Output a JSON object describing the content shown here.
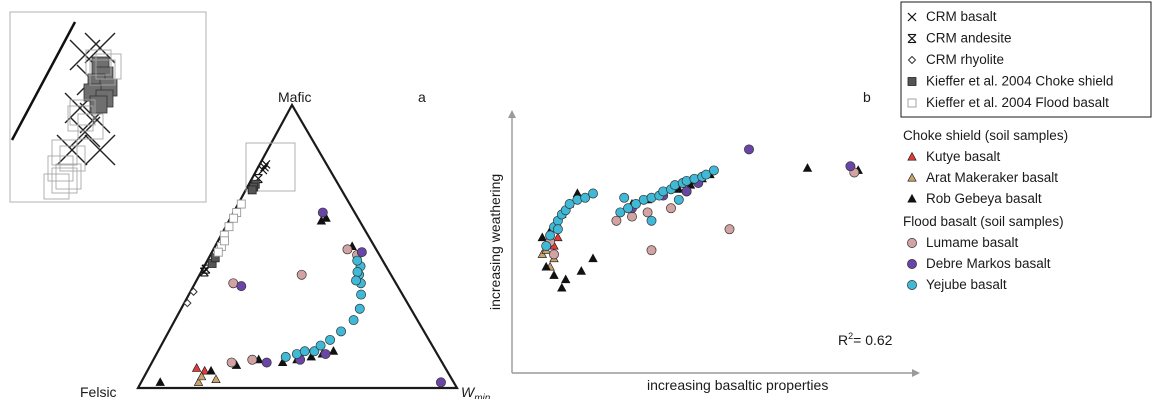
{
  "colors": {
    "axis": "#1a1a1a",
    "arrow": "#9a9a9a",
    "inset_border": "#b0b0b0",
    "kutye": "#e03a3a",
    "arat": "#c9a26e",
    "rob": "#111111",
    "lumame_fill": "#d3a3a3",
    "debre_fill": "#6a45a8",
    "yejube_fill": "#3fb9d6",
    "kieffer_choke": "#555555",
    "kieffer_flood": "#ffffff"
  },
  "chart_data": [
    {
      "panel": "a",
      "type": "scatter",
      "subtype": "ternary",
      "vertices": {
        "top": "Mafic",
        "left": "Felsic",
        "right": "W",
        "right_subscript": "min"
      },
      "note": "values are barycentric fractions (mafic, felsic, wmin)",
      "series": [
        {
          "name": "CRM basalt",
          "marker": "x",
          "points": [
            [
              0.78,
              0.2,
              0.02
            ],
            [
              0.77,
              0.21,
              0.02
            ],
            [
              0.79,
              0.19,
              0.02
            ]
          ]
        },
        {
          "name": "CRM andesite",
          "marker": "x-bar",
          "points": [
            [
              0.41,
              0.58,
              0.01
            ],
            [
              0.42,
              0.57,
              0.01
            ],
            [
              0.74,
              0.24,
              0.02
            ]
          ]
        },
        {
          "name": "CRM rhyolite",
          "marker": "diamond",
          "points": [
            [
              0.3,
              0.69,
              0.01
            ],
            [
              0.34,
              0.65,
              0.01
            ]
          ]
        },
        {
          "name": "Kieffer et al. 2004 Choke shield",
          "marker": "square-dark",
          "points": [
            [
              0.72,
              0.26,
              0.02
            ],
            [
              0.71,
              0.27,
              0.02
            ],
            [
              0.7,
              0.28,
              0.02
            ],
            [
              0.44,
              0.54,
              0.02
            ],
            [
              0.46,
              0.52,
              0.02
            ]
          ]
        },
        {
          "name": "Kieffer et al. 2004 Flood basalt",
          "marker": "square-open",
          "points": [
            [
              0.65,
              0.34,
              0.01
            ],
            [
              0.62,
              0.37,
              0.01
            ],
            [
              0.6,
              0.39,
              0.01
            ],
            [
              0.57,
              0.42,
              0.01
            ],
            [
              0.54,
              0.45,
              0.01
            ],
            [
              0.5,
              0.48,
              0.02
            ],
            [
              0.48,
              0.5,
              0.02
            ],
            [
              0.52,
              0.46,
              0.02
            ]
          ]
        },
        {
          "name": "Kutye basalt",
          "marker": "triangle",
          "points": [
            [
              0.07,
              0.78,
              0.15
            ],
            [
              0.06,
              0.76,
              0.18
            ]
          ]
        },
        {
          "name": "Arat Makeraker basalt",
          "marker": "triangle",
          "points": [
            [
              0.02,
              0.8,
              0.18
            ],
            [
              0.04,
              0.78,
              0.18
            ],
            [
              0.03,
              0.74,
              0.23
            ]
          ]
        },
        {
          "name": "Rob Gebeya basalt",
          "marker": "triangle",
          "points": [
            [
              0.02,
              0.92,
              0.06
            ],
            [
              0.06,
              0.74,
              0.2
            ],
            [
              0.08,
              0.65,
              0.27
            ],
            [
              0.1,
              0.57,
              0.33
            ],
            [
              0.09,
              0.5,
              0.41
            ],
            [
              0.1,
              0.45,
              0.45
            ],
            [
              0.11,
              0.4,
              0.49
            ],
            [
              0.12,
              0.36,
              0.52
            ],
            [
              0.13,
              0.32,
              0.55
            ],
            [
              0.59,
              0.12,
              0.29
            ],
            [
              0.6,
              0.1,
              0.3
            ],
            [
              0.5,
              0.07,
              0.43
            ]
          ]
        },
        {
          "name": "Lumame basalt",
          "marker": "circle",
          "points": [
            [
              0.09,
              0.66,
              0.25
            ],
            [
              0.1,
              0.59,
              0.31
            ],
            [
              0.4,
              0.28,
              0.32
            ],
            [
              0.49,
              0.09,
              0.42
            ],
            [
              0.47,
              0.07,
              0.46
            ],
            [
              0.37,
              0.51,
              0.12
            ]
          ]
        },
        {
          "name": "Debre Markos basalt",
          "marker": "circle",
          "points": [
            [
              0.36,
              0.49,
              0.15
            ],
            [
              0.62,
              0.1,
              0.28
            ],
            [
              0.48,
              0.05,
              0.47
            ],
            [
              0.09,
              0.55,
              0.36
            ],
            [
              0.1,
              0.44,
              0.46
            ],
            [
              0.12,
              0.35,
              0.53
            ],
            [
              0.02,
              0.04,
              0.94
            ]
          ]
        },
        {
          "name": "Yejube basalt",
          "marker": "circle",
          "points": [
            [
              0.11,
              0.48,
              0.41
            ],
            [
              0.12,
              0.44,
              0.44
            ],
            [
              0.13,
              0.41,
              0.46
            ],
            [
              0.13,
              0.38,
              0.49
            ],
            [
              0.15,
              0.35,
              0.5
            ],
            [
              0.17,
              0.31,
              0.52
            ],
            [
              0.2,
              0.26,
              0.54
            ],
            [
              0.24,
              0.2,
              0.56
            ],
            [
              0.28,
              0.16,
              0.56
            ],
            [
              0.33,
              0.13,
              0.54
            ],
            [
              0.37,
              0.11,
              0.52
            ],
            [
              0.4,
              0.1,
              0.5
            ],
            [
              0.43,
              0.08,
              0.49
            ],
            [
              0.45,
              0.08,
              0.47
            ],
            [
              0.41,
              0.1,
              0.49
            ],
            [
              0.38,
              0.12,
              0.5
            ]
          ]
        }
      ]
    },
    {
      "panel": "b",
      "type": "scatter",
      "xlabel": "increasing basaltic properties",
      "ylabel": "increasing weathering",
      "annotation": "R² = 0.62",
      "xlim": [
        0,
        100
      ],
      "ylim": [
        0,
        100
      ],
      "series": [
        {
          "name": "Kutye basalt",
          "points": [
            [
              10,
              40
            ],
            [
              11,
              44
            ]
          ]
        },
        {
          "name": "Arat Makeraker basalt",
          "points": [
            [
              7,
              36
            ],
            [
              8,
              38
            ],
            [
              9,
              30
            ],
            [
              10,
              34
            ]
          ]
        },
        {
          "name": "Rob Gebeya basalt",
          "points": [
            [
              7,
              44
            ],
            [
              9,
              47
            ],
            [
              11,
              50
            ],
            [
              12,
              55
            ],
            [
              14,
              60
            ],
            [
              16,
              65
            ],
            [
              8,
              30
            ],
            [
              10,
              26
            ],
            [
              12,
              20
            ],
            [
              13,
              24
            ],
            [
              17,
              28
            ],
            [
              20,
              34
            ],
            [
              30,
              60
            ],
            [
              34,
              62
            ],
            [
              38,
              65
            ],
            [
              42,
              67
            ],
            [
              45,
              69
            ],
            [
              48,
              72
            ],
            [
              50,
              74
            ],
            [
              75,
              77
            ],
            [
              88,
              76
            ],
            [
              45,
              71
            ]
          ]
        },
        {
          "name": "Lumame basalt",
          "points": [
            [
              9,
              42
            ],
            [
              10,
              36
            ],
            [
              26,
              52
            ],
            [
              30,
              54
            ],
            [
              34,
              56
            ],
            [
              40,
              58
            ],
            [
              44,
              66
            ],
            [
              55,
              48
            ],
            [
              35,
              38
            ],
            [
              87,
              75
            ]
          ]
        },
        {
          "name": "Debre Markos basalt",
          "points": [
            [
              30,
              58
            ],
            [
              38,
              64
            ],
            [
              44,
              66
            ],
            [
              47,
              70
            ],
            [
              60,
              86
            ],
            [
              86,
              78
            ]
          ]
        },
        {
          "name": "Yejube basalt",
          "points": [
            [
              8,
              40
            ],
            [
              9,
              45
            ],
            [
              10,
              49
            ],
            [
              11,
              52
            ],
            [
              12,
              55
            ],
            [
              13,
              57
            ],
            [
              14,
              60
            ],
            [
              16,
              62
            ],
            [
              18,
              63
            ],
            [
              20,
              65
            ],
            [
              27,
              56
            ],
            [
              29,
              58
            ],
            [
              31,
              60
            ],
            [
              33,
              62
            ],
            [
              35,
              63
            ],
            [
              37,
              64
            ],
            [
              38,
              66
            ],
            [
              40,
              67
            ],
            [
              41,
              69
            ],
            [
              43,
              70
            ],
            [
              44,
              71
            ],
            [
              46,
              72
            ],
            [
              48,
              73
            ],
            [
              49,
              74
            ],
            [
              51,
              76
            ],
            [
              35,
              52
            ],
            [
              42,
              62
            ],
            [
              28,
              63
            ],
            [
              11,
              48
            ]
          ]
        }
      ]
    }
  ],
  "ternary": {
    "top_label": "Mafic",
    "left_label": "Felsic",
    "right_label_main": "W",
    "right_label_sub": "min",
    "panel_label": "a"
  },
  "scatter_b": {
    "panel_label": "b",
    "ylabel": "increasing weathering",
    "xlabel": "increasing basaltic properties",
    "r2_main": "R",
    "r2_sup": "2",
    "r2_value": "= 0.62"
  },
  "legend": {
    "box_items": [
      {
        "marker": "x",
        "label": "CRM basalt"
      },
      {
        "marker": "x-bar",
        "label": "CRM andesite"
      },
      {
        "marker": "diamond",
        "label": "CRM rhyolite"
      },
      {
        "marker": "square-dark",
        "label": "Kieffer et al. 2004 Choke shield"
      },
      {
        "marker": "square-open",
        "label": "Kieffer et al. 2004 Flood basalt"
      }
    ],
    "choke_heading": "Choke shield (soil samples)",
    "choke_items": [
      {
        "marker": "triangle",
        "color": "#e03a3a",
        "label": "Kutye basalt"
      },
      {
        "marker": "triangle",
        "color": "#c9a26e",
        "label": "Arat Makeraker basalt"
      },
      {
        "marker": "triangle",
        "color": "#111111",
        "label": "Rob Gebeya basalt"
      }
    ],
    "flood_heading": "Flood basalt (soil samples)",
    "flood_items": [
      {
        "marker": "circle",
        "color": "#d3a3a3",
        "label": "Lumame basalt"
      },
      {
        "marker": "circle",
        "color": "#6a45a8",
        "label": "Debre Markos basalt"
      },
      {
        "marker": "circle",
        "color": "#3fb9d6",
        "label": "Yejube basalt"
      }
    ]
  }
}
